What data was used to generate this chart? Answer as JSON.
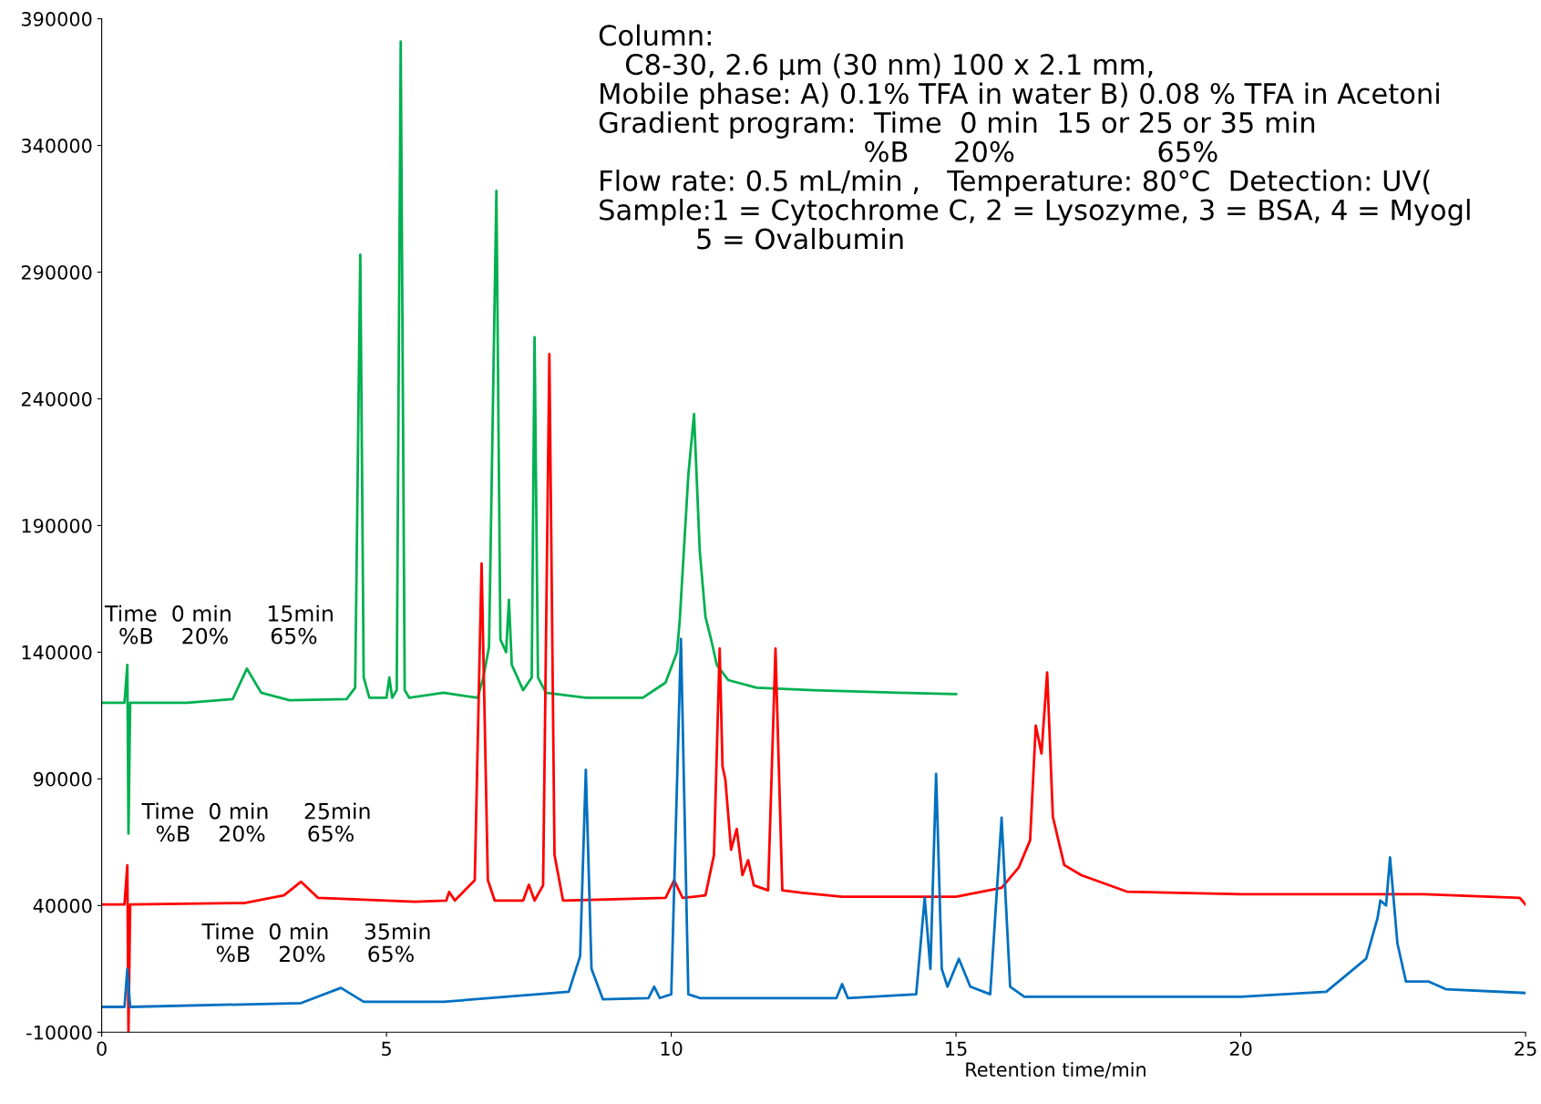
{
  "chart_data": {
    "type": "line",
    "xlabel": "Retention time/min",
    "xlim": [
      0,
      25
    ],
    "xticks": [
      0,
      5,
      10,
      15,
      20,
      25
    ],
    "ylim": [
      -10000,
      390000
    ],
    "yticks": [
      -10000,
      40000,
      90000,
      140000,
      190000,
      240000,
      290000,
      340000,
      390000
    ],
    "grid": false,
    "legend": false,
    "marker": "none",
    "line_style": "solid",
    "series": [
      {
        "color": "#00b050",
        "x": [
          0,
          0.4,
          0.45,
          0.47,
          0.5,
          1.5,
          2.3,
          2.55,
          2.8,
          3.3,
          4.3,
          4.45,
          4.54,
          4.6,
          4.7,
          5.0,
          5.05,
          5.1,
          5.18,
          5.25,
          5.32,
          5.4,
          6.0,
          6.6,
          6.7,
          6.8,
          6.93,
          7.0,
          7.1,
          7.15,
          7.2,
          7.4,
          7.55,
          7.6,
          7.66,
          7.8,
          8.5,
          9.5,
          9.9,
          10.1,
          10.15,
          10.3,
          10.4,
          10.5,
          10.6,
          10.7,
          10.8,
          11.0,
          11.5,
          12.5,
          14,
          15
        ],
        "values": [
          120000,
          120000,
          135000,
          68400,
          120000,
          120000,
          121500,
          133500,
          124000,
          121000,
          121500,
          126000,
          296900,
          130000,
          122000,
          122000,
          130000,
          122000,
          125000,
          381000,
          125000,
          122000,
          124000,
          122000,
          130000,
          142000,
          322100,
          145000,
          140000,
          160700,
          135000,
          125000,
          130000,
          264300,
          130000,
          124000,
          122000,
          122000,
          128000,
          140000,
          153000,
          210000,
          234000,
          180000,
          154000,
          145000,
          135000,
          129000,
          126000,
          125000,
          124000,
          123500
        ]
      },
      {
        "color": "#ff0000",
        "x": [
          0,
          0.4,
          0.45,
          0.47,
          0.5,
          2.5,
          3.2,
          3.5,
          3.8,
          5.5,
          6.05,
          6.1,
          6.2,
          6.55,
          6.67,
          6.78,
          6.9,
          7.4,
          7.5,
          7.6,
          7.75,
          7.86,
          7.95,
          8.1,
          9.9,
          10.05,
          10.2,
          10.6,
          10.75,
          10.85,
          10.9,
          10.95,
          11.05,
          11.15,
          11.25,
          11.35,
          11.45,
          11.7,
          11.83,
          11.95,
          12.3,
          13,
          15,
          15.8,
          16.1,
          16.3,
          16.4,
          16.5,
          16.6,
          16.7,
          16.9,
          17.2,
          18,
          20,
          23.2,
          24.9,
          25
        ],
        "values": [
          40400,
          40400,
          55900,
          -10000,
          40400,
          41000,
          44000,
          49400,
          43000,
          41500,
          42000,
          45400,
          42000,
          50000,
          175000,
          50000,
          42000,
          42000,
          48200,
          42000,
          48000,
          257700,
          60000,
          42000,
          43000,
          50000,
          43000,
          44000,
          60000,
          141400,
          95000,
          89700,
          62000,
          70300,
          52000,
          57900,
          48000,
          46000,
          141400,
          46000,
          45000,
          43500,
          43500,
          47000,
          55000,
          65700,
          111000,
          100000,
          132000,
          75000,
          56000,
          52000,
          45500,
          44500,
          44500,
          43000,
          40400
        ]
      },
      {
        "color": "#0070c0",
        "x": [
          0,
          0.4,
          0.45,
          0.5,
          3.5,
          4.2,
          4.6,
          6.0,
          8.2,
          8.4,
          8.5,
          8.6,
          8.8,
          9.6,
          9.7,
          9.8,
          10.0,
          10.17,
          10.3,
          10.5,
          12.9,
          13.0,
          13.1,
          14.3,
          14.45,
          14.55,
          14.65,
          14.75,
          14.85,
          15.05,
          15.25,
          15.6,
          15.8,
          15.95,
          16.2,
          20,
          21.5,
          22.2,
          22.4,
          22.45,
          22.55,
          22.62,
          22.75,
          22.9,
          23.3,
          23.6,
          25
        ],
        "values": [
          0,
          0,
          15000,
          0,
          1500,
          7500,
          2000,
          2000,
          6000,
          20000,
          93600,
          15000,
          3000,
          3500,
          8000,
          3500,
          5000,
          145200,
          5000,
          3500,
          3500,
          9000,
          3500,
          5000,
          43000,
          15000,
          92000,
          15000,
          8000,
          19000,
          8000,
          5000,
          74700,
          8000,
          4000,
          4000,
          6000,
          19000,
          35000,
          42000,
          40000,
          59000,
          25000,
          10000,
          10000,
          7000,
          5500
        ]
      }
    ],
    "annotations": [
      "Column:\n   C8-30, 2.6 μm (30 nm) 100 x 2.1 mm,\nMobile phase: A) 0.1% TFA in water B) 0.08 % TFA in Acetoni\nGradient program:  Time  0 min  15 or 25 or 35 min\n                              %B     20%                65%\nFlow rate: 0.5 mL/min ,   Temperature: 80°C  Detection: UV(\nSample:1 = Cytochrome C, 2 = Lysozyme, 3 = BSA, 4 = Myogl\n           5 = Ovalbumin",
      "Time  0 min     15min\n  %B    20%      65%",
      "Time  0 min     25min\n  %B    20%      65%",
      "Time  0 min     35min\n  %B    20%      65%"
    ]
  }
}
